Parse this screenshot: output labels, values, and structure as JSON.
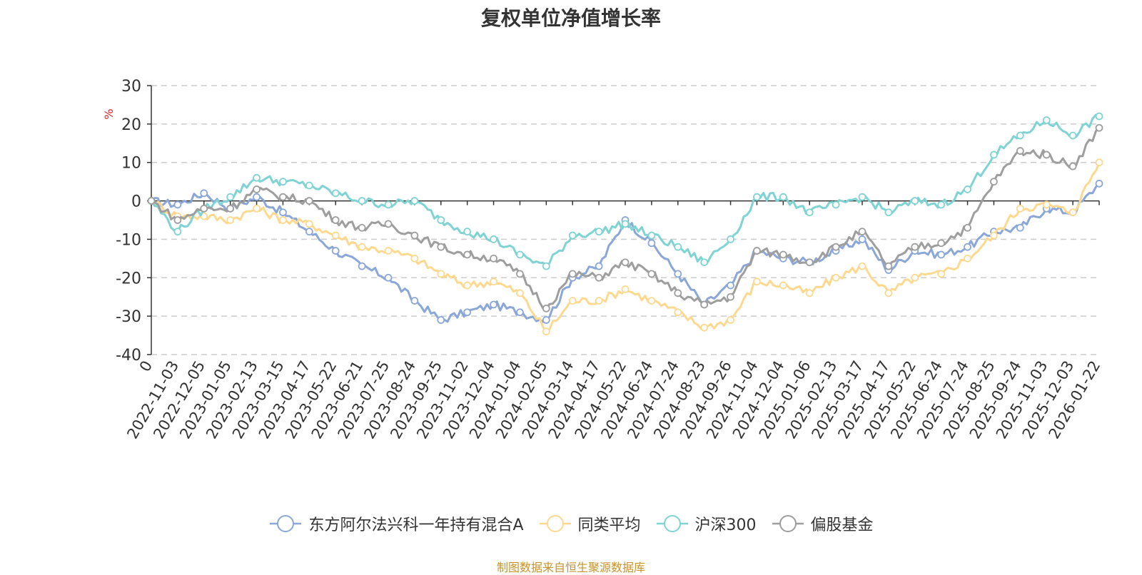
{
  "chart_data": {
    "type": "line",
    "title": "复权单位净值增长率",
    "ylabel": "%",
    "ylim": [
      -40,
      30
    ],
    "yticks": [
      -40,
      -30,
      -20,
      -10,
      0,
      10,
      20,
      30
    ],
    "categories": [
      "0",
      "2022-11-03",
      "2022-12-05",
      "2023-01-05",
      "2023-02-13",
      "2023-03-15",
      "2023-04-17",
      "2023-05-22",
      "2023-06-21",
      "2023-07-25",
      "2023-08-24",
      "2023-09-25",
      "2023-11-02",
      "2023-12-04",
      "2024-01-04",
      "2024-02-05",
      "2024-03-14",
      "2024-04-17",
      "2024-05-22",
      "2024-06-24",
      "2024-07-24",
      "2024-08-23",
      "2024-09-26",
      "2024-11-04",
      "2024-12-04",
      "2025-01-06",
      "2025-02-13",
      "2025-03-17",
      "2025-04-17",
      "2025-05-22",
      "2025-06-24",
      "2025-07-24",
      "2025-08-25",
      "2025-09-24",
      "2025-11-03",
      "2025-12-03",
      "2026-01-22"
    ],
    "grid": "horizontal-dashed",
    "legend_position": "bottom",
    "series": [
      {
        "name": "东方阿尔法兴科一年持有混合A",
        "color": "#8aa7d8",
        "values": [
          0,
          -1,
          2,
          -2,
          1,
          -3,
          -8,
          -13,
          -17,
          -20,
          -26,
          -31,
          -29,
          -27,
          -29,
          -31,
          -20,
          -17,
          -5,
          -11,
          -19,
          -27,
          -22,
          -13,
          -15,
          -16,
          -13,
          -10,
          -18,
          -13,
          -14,
          -12,
          -8,
          -7,
          -2,
          -3,
          4.5
        ]
      },
      {
        "name": "同类平均",
        "color": "#fdd98f",
        "values": [
          0,
          -4,
          -4,
          -5,
          -2,
          -5,
          -6,
          -9,
          -12,
          -13,
          -15,
          -19,
          -22,
          -21,
          -24,
          -34,
          -26,
          -26,
          -23,
          -26,
          -29,
          -33,
          -31,
          -21,
          -22,
          -24,
          -20,
          -17,
          -24,
          -20,
          -19,
          -15,
          -9,
          -2,
          -1,
          -3,
          10
        ]
      },
      {
        "name": "沪深300",
        "color": "#7fd3d3",
        "values": [
          0,
          -8,
          -2,
          1,
          6,
          5,
          4,
          2,
          0,
          -1,
          0,
          -5,
          -8,
          -10,
          -14,
          -17,
          -9,
          -8,
          -6,
          -9,
          -12,
          -16,
          -10,
          1,
          1,
          -3,
          -1,
          1,
          -3,
          0,
          -1,
          3,
          12,
          17,
          21,
          17,
          22
        ]
      },
      {
        "name": "偏股基金",
        "color": "#9e9e9e",
        "values": [
          0,
          -5,
          -2,
          -2,
          3,
          1,
          0,
          -5,
          -7,
          -6,
          -9,
          -12,
          -14,
          -15,
          -19,
          -28,
          -19,
          -20,
          -16,
          -19,
          -24,
          -27,
          -25,
          -13,
          -14,
          -16,
          -12,
          -8,
          -17,
          -12,
          -11,
          -7,
          5,
          13,
          12,
          9,
          19
        ]
      }
    ]
  },
  "source": "制图数据来自恒生聚源数据库"
}
